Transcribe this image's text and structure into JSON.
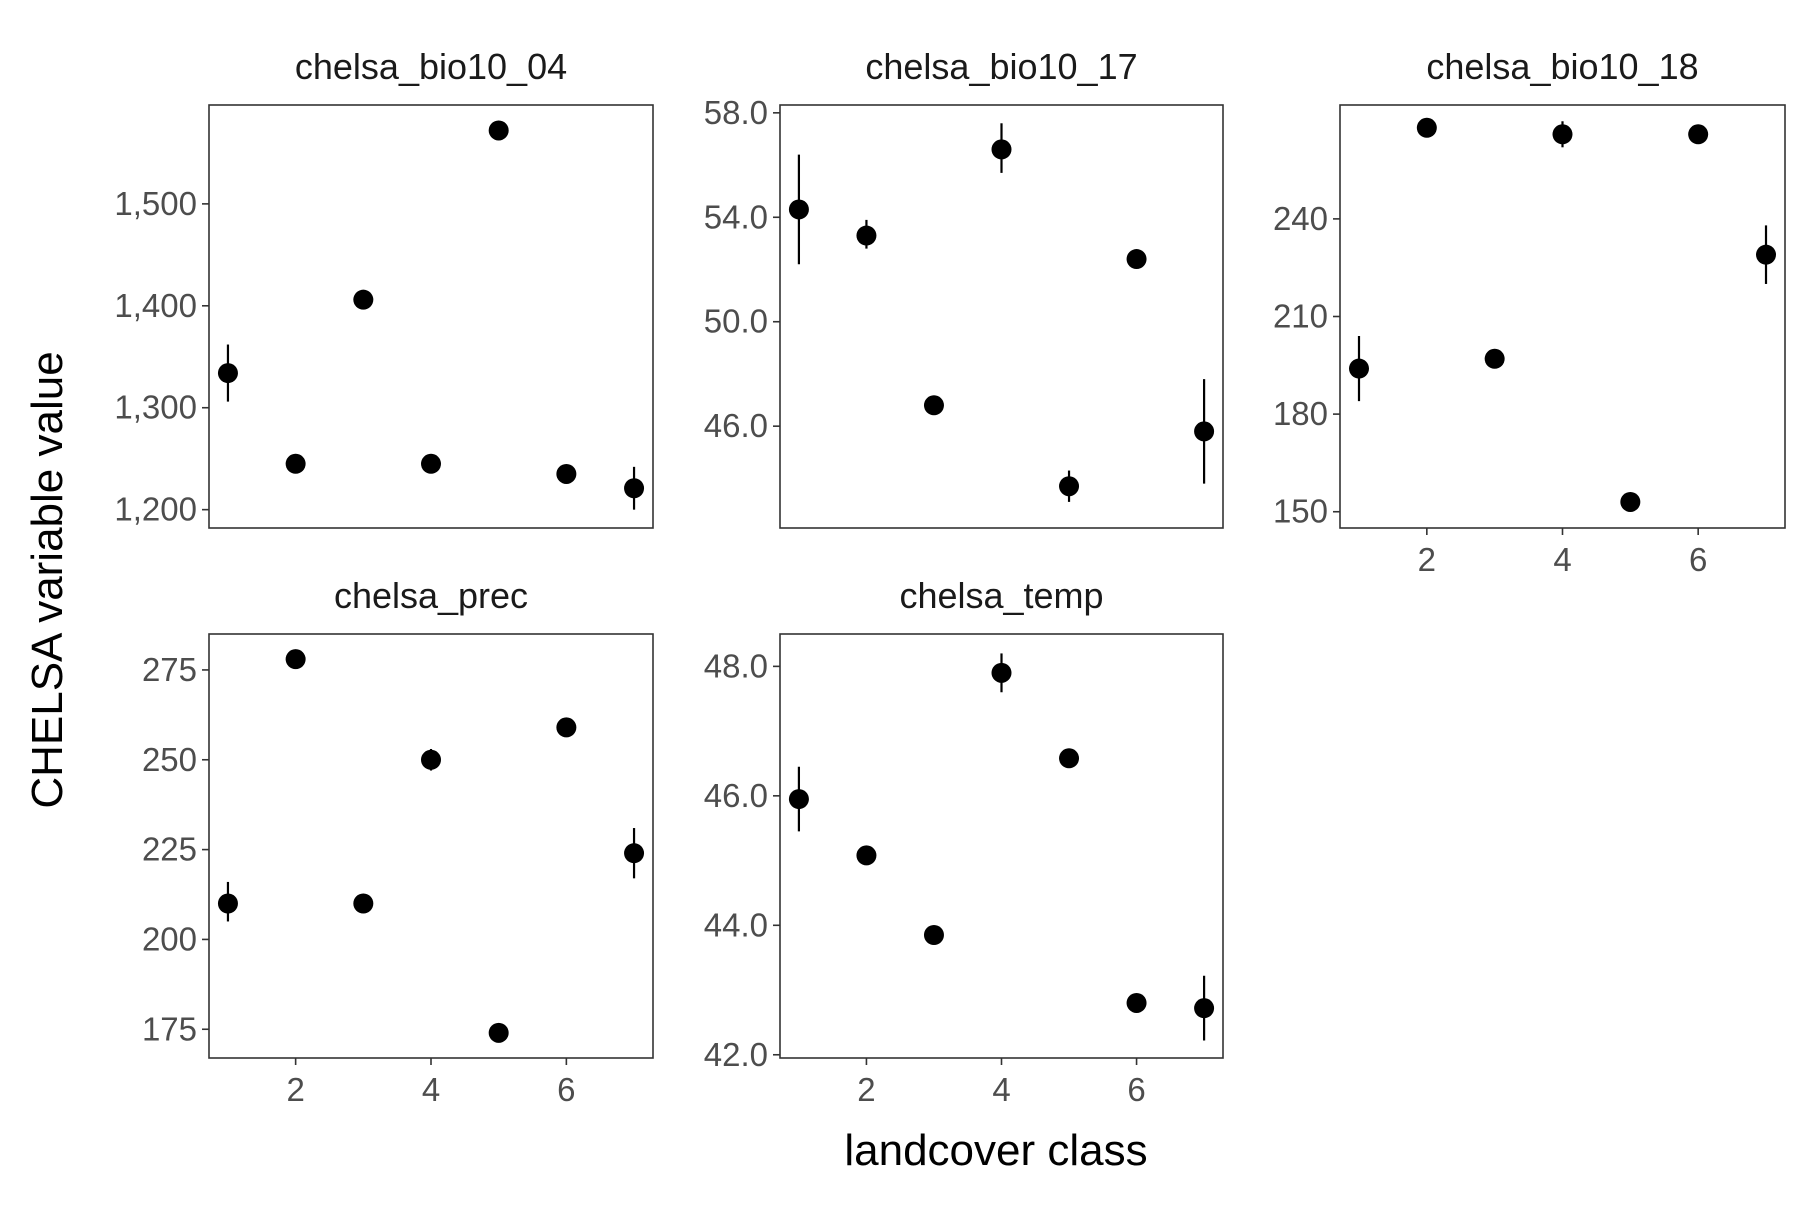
{
  "figure": {
    "ylabel": "CHELSA variable value",
    "xlabel": "landcover class"
  },
  "chart_data": [
    {
      "type": "scatter",
      "title": "chelsa_bio10_04",
      "x": [
        1,
        2,
        3,
        4,
        5,
        6,
        7
      ],
      "y": [
        1334,
        1245,
        1406,
        1245,
        1572,
        1235,
        1221
      ],
      "ymin": [
        1306,
        1240,
        1401,
        1240,
        1568,
        1230,
        1200
      ],
      "ymax": [
        1362,
        1250,
        1411,
        1250,
        1576,
        1240,
        1242
      ],
      "xlim": [
        0.72,
        7.28
      ],
      "ylim": [
        1182,
        1597
      ],
      "xticks": [
        2,
        4,
        6
      ],
      "yticks": [
        1200,
        1300,
        1400,
        1500
      ],
      "ytick_labels": [
        "1,200",
        "1,300",
        "1,400",
        "1,500"
      ],
      "show_x_ticks": false
    },
    {
      "type": "scatter",
      "title": "chelsa_bio10_17",
      "x": [
        1,
        2,
        3,
        4,
        5,
        6,
        7
      ],
      "y": [
        54.3,
        53.3,
        46.8,
        56.6,
        43.7,
        52.4,
        45.8
      ],
      "ymin": [
        52.2,
        52.8,
        46.6,
        55.7,
        43.1,
        52.2,
        43.8
      ],
      "ymax": [
        56.4,
        53.9,
        47.0,
        57.6,
        44.3,
        52.6,
        47.8
      ],
      "xlim": [
        0.72,
        7.28
      ],
      "ylim": [
        42.1,
        58.3
      ],
      "xticks": [
        2,
        4,
        6
      ],
      "yticks": [
        46,
        50,
        54,
        58
      ],
      "ytick_labels": [
        "46.0",
        "50.0",
        "54.0",
        "58.0"
      ],
      "show_x_ticks": false
    },
    {
      "type": "scatter",
      "title": "chelsa_bio10_18",
      "x": [
        1,
        2,
        3,
        4,
        5,
        6,
        7
      ],
      "y": [
        194,
        268,
        197,
        266,
        153,
        266,
        229
      ],
      "ymin": [
        184,
        266,
        195,
        262,
        151,
        264,
        220
      ],
      "ymax": [
        204,
        270,
        199,
        270,
        155,
        268,
        238
      ],
      "xlim": [
        0.72,
        7.28
      ],
      "ylim": [
        145,
        275
      ],
      "xticks": [
        2,
        4,
        6
      ],
      "yticks": [
        150,
        180,
        210,
        240
      ],
      "ytick_labels": [
        "150",
        "180",
        "210",
        "240"
      ],
      "show_x_ticks": true
    },
    {
      "type": "scatter",
      "title": "chelsa_prec",
      "x": [
        1,
        2,
        3,
        4,
        5,
        6,
        7
      ],
      "y": [
        210,
        278,
        210,
        250,
        174,
        259,
        224
      ],
      "ymin": [
        205,
        276,
        208,
        247,
        172,
        257,
        217
      ],
      "ymax": [
        216,
        280,
        212,
        253,
        176,
        261,
        231
      ],
      "xlim": [
        0.72,
        7.28
      ],
      "ylim": [
        167,
        285
      ],
      "xticks": [
        2,
        4,
        6
      ],
      "yticks": [
        175,
        200,
        225,
        250,
        275
      ],
      "ytick_labels": [
        "175",
        "200",
        "225",
        "250",
        "275"
      ],
      "show_x_ticks": true
    },
    {
      "type": "scatter",
      "title": "chelsa_temp",
      "x": [
        1,
        2,
        3,
        4,
        5,
        6,
        7
      ],
      "y": [
        45.95,
        45.08,
        43.85,
        47.9,
        46.58,
        42.8,
        42.72
      ],
      "ymin": [
        45.45,
        45.0,
        43.78,
        47.6,
        46.5,
        42.72,
        42.22
      ],
      "ymax": [
        46.45,
        45.16,
        43.92,
        48.2,
        46.66,
        42.88,
        43.22
      ],
      "xlim": [
        0.72,
        7.28
      ],
      "ylim": [
        41.95,
        48.5
      ],
      "xticks": [
        2,
        4,
        6
      ],
      "yticks": [
        42,
        44,
        46,
        48
      ],
      "ytick_labels": [
        "42.0",
        "44.0",
        "46.0",
        "48.0"
      ],
      "show_x_ticks": true
    }
  ]
}
